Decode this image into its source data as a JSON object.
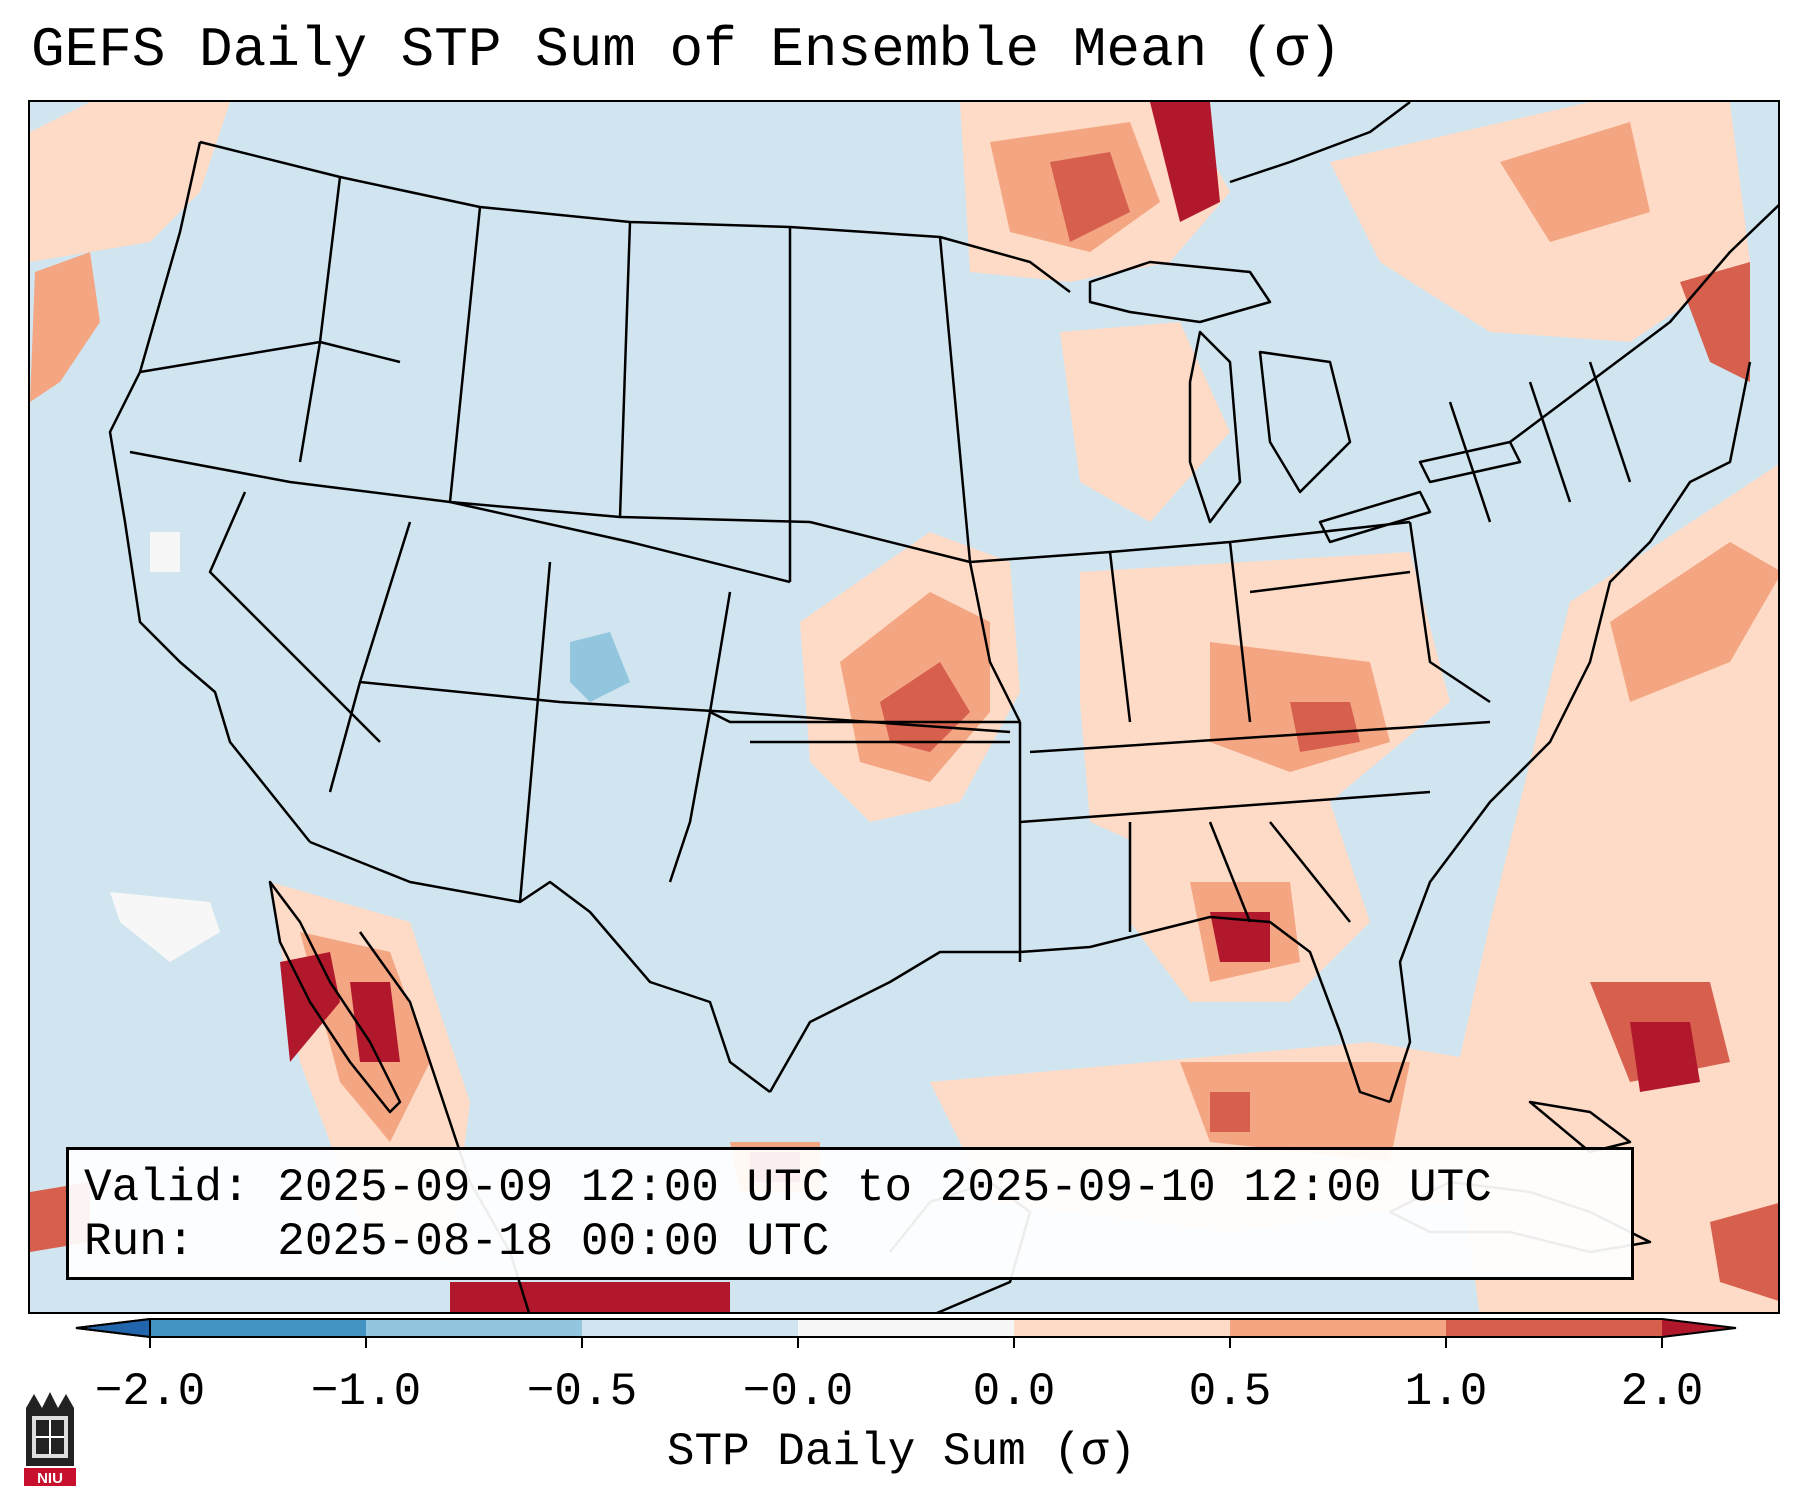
{
  "title": "GEFS Daily STP Sum of Ensemble Mean (σ)",
  "map": {
    "region": "CONUS",
    "ocean_color": "#d1e5f0",
    "border_color": "#000000"
  },
  "info": {
    "valid_line": "Valid: 2025-09-09 12:00 UTC to 2025-09-10 12:00 UTC",
    "run_line": "Run:   2025-08-18 00:00 UTC"
  },
  "colorbar": {
    "label": "STP Daily Sum (σ)",
    "ticks": [
      "−2.0",
      "−1.0",
      "−0.5",
      "−0.0",
      "0.0",
      "0.5",
      "1.0",
      "2.0"
    ],
    "colors": [
      "#2166ac",
      "#4393c3",
      "#92c5de",
      "#d1e5f0",
      "#f7f7f7",
      "#fddbc7",
      "#f4a582",
      "#d6604d",
      "#b2182b"
    ]
  },
  "logo": {
    "text": "NIU",
    "icon": "niu-castle-logo"
  }
}
